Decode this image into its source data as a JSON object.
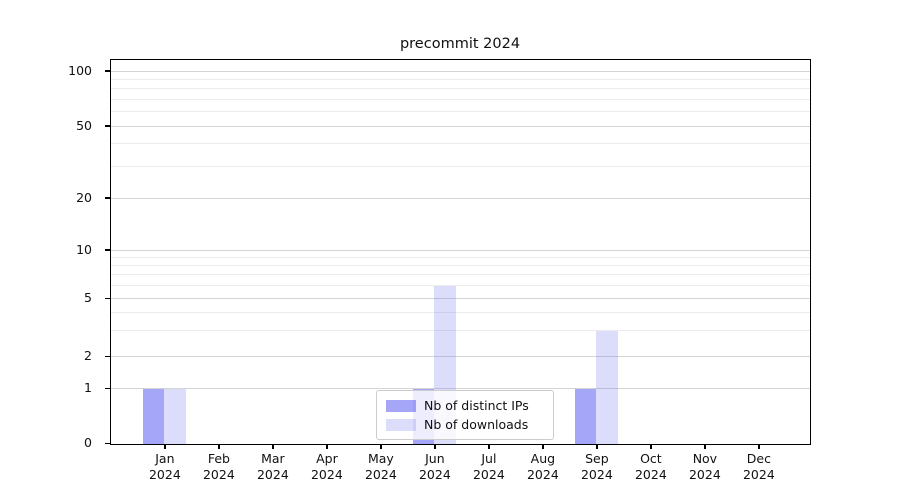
{
  "title": "precommit 2024",
  "chart_data": {
    "type": "bar",
    "title": "precommit 2024",
    "categories": [
      "Jan 2024",
      "Feb 2024",
      "Mar 2024",
      "Apr 2024",
      "May 2024",
      "Jun 2024",
      "Jul 2024",
      "Aug 2024",
      "Sep 2024",
      "Oct 2024",
      "Nov 2024",
      "Dec 2024"
    ],
    "series": [
      {
        "name": "Nb of distinct IPs",
        "color": "rgba(70,70,240,0.48)",
        "values": [
          1,
          0,
          0,
          0,
          0,
          1,
          0,
          0,
          1,
          0,
          0,
          0
        ]
      },
      {
        "name": "Nb of downloads",
        "color": "rgba(120,120,240,0.26)",
        "values": [
          1,
          0,
          0,
          0,
          0,
          6,
          0,
          0,
          3,
          0,
          0,
          0
        ]
      }
    ],
    "xlabel": "",
    "ylabel": "",
    "y_axis": {
      "scale": "symlog",
      "major_ticks": [
        0,
        1,
        2,
        5,
        10,
        20,
        50,
        100
      ],
      "minor_ticks": [
        3,
        4,
        6,
        7,
        8,
        9,
        30,
        40,
        60,
        70,
        80,
        90
      ],
      "range": [
        0,
        120
      ]
    },
    "grid": true,
    "legend": {
      "position": "lower center",
      "entries": [
        "Nb of distinct IPs",
        "Nb of downloads"
      ]
    }
  }
}
